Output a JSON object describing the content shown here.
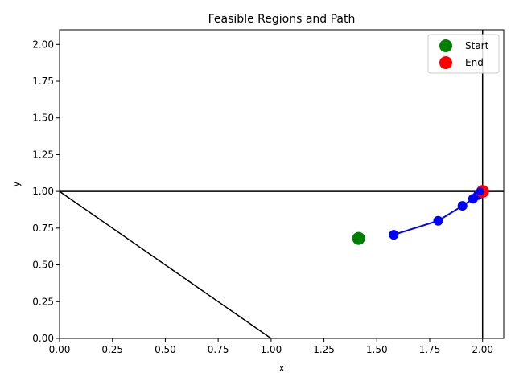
{
  "chart_data": {
    "type": "line",
    "title": "Feasible Regions and Path",
    "xlabel": "x",
    "ylabel": "y",
    "xlim": [
      0,
      2.1
    ],
    "ylim": [
      0,
      2.1
    ],
    "xticks": [
      0.0,
      0.25,
      0.5,
      0.75,
      1.0,
      1.25,
      1.5,
      1.75,
      2.0
    ],
    "yticks": [
      0.0,
      0.25,
      0.5,
      0.75,
      1.0,
      1.25,
      1.5,
      1.75,
      2.0
    ],
    "xtick_labels": [
      "0.00",
      "0.25",
      "0.50",
      "0.75",
      "1.00",
      "1.25",
      "1.50",
      "1.75",
      "2.00"
    ],
    "ytick_labels": [
      "0.00",
      "0.25",
      "0.50",
      "0.75",
      "1.00",
      "1.25",
      "1.50",
      "1.75",
      "2.00"
    ],
    "grid": false,
    "legend_position": "top-right",
    "constraint_lines": [
      {
        "kind": "horizontal",
        "y": 1.0,
        "color": "#000000"
      },
      {
        "kind": "vertical",
        "x": 2.0,
        "color": "#000000"
      },
      {
        "kind": "segment",
        "points": [
          [
            0,
            1
          ],
          [
            1,
            0
          ]
        ],
        "color": "#000000"
      }
    ],
    "path": {
      "color": "#0000ff",
      "points": [
        [
          1.58,
          0.705
        ],
        [
          1.79,
          0.8
        ],
        [
          1.905,
          0.902
        ],
        [
          1.955,
          0.95
        ],
        [
          1.978,
          0.975
        ],
        [
          1.99,
          0.988
        ],
        [
          1.996,
          0.995
        ],
        [
          2.0,
          1.0
        ]
      ]
    },
    "start": {
      "x": 1.414,
      "y": 0.68,
      "color": "#008000",
      "label": "Start"
    },
    "end": {
      "x": 2.0,
      "y": 1.0,
      "color": "#ff0000",
      "label": "End"
    },
    "legend": [
      {
        "label": "Start",
        "color": "#008000"
      },
      {
        "label": "End",
        "color": "#ff0000"
      }
    ]
  }
}
